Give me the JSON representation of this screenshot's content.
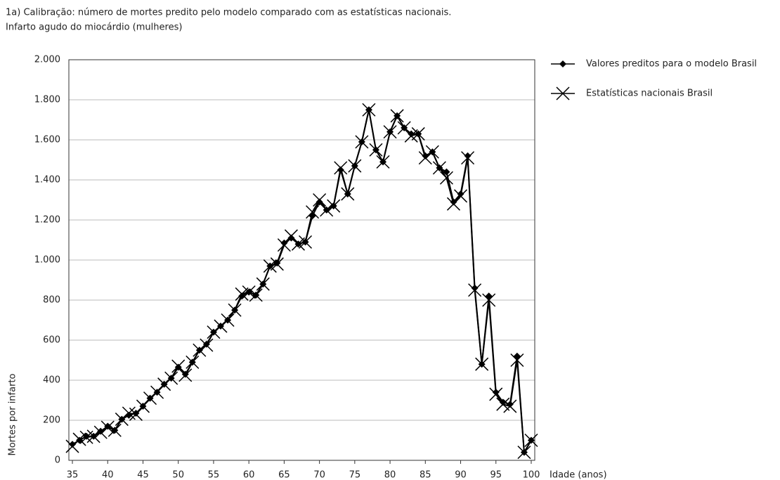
{
  "chart_data": {
    "type": "line",
    "title": "1a) Calibração: número de mortes predito pelo modelo comparado com as estatísticas nacionais.",
    "subtitle": "Infarto agudo do miocárdio (mulheres)",
    "y_label": "Mortes por infarto",
    "x_label": "Idade (anos)",
    "x": [
      35,
      36,
      37,
      38,
      39,
      40,
      41,
      42,
      43,
      44,
      45,
      46,
      47,
      48,
      49,
      50,
      51,
      52,
      53,
      54,
      55,
      56,
      57,
      58,
      59,
      60,
      61,
      62,
      63,
      64,
      65,
      66,
      67,
      68,
      69,
      70,
      71,
      72,
      73,
      74,
      75,
      76,
      77,
      78,
      79,
      80,
      81,
      82,
      83,
      84,
      85,
      86,
      87,
      88,
      89,
      90,
      91,
      92,
      93,
      94,
      95,
      96,
      97,
      98,
      99,
      100
    ],
    "series": [
      {
        "name": "Valores preditos para o modelo Brasil",
        "color": "#000000",
        "marker": "diamond",
        "values": [
          80,
          100,
          120,
          120,
          145,
          170,
          150,
          205,
          225,
          235,
          270,
          310,
          340,
          380,
          410,
          465,
          430,
          490,
          550,
          580,
          640,
          670,
          700,
          750,
          820,
          840,
          825,
          880,
          970,
          985,
          1085,
          1110,
          1080,
          1090,
          1220,
          1290,
          1250,
          1270,
          1450,
          1330,
          1470,
          1590,
          1750,
          1550,
          1490,
          1640,
          1720,
          1660,
          1630,
          1630,
          1520,
          1540,
          1460,
          1440,
          1290,
          1330,
          1520,
          860,
          480,
          820,
          340,
          290,
          280,
          520,
          40,
          100
        ]
      },
      {
        "name": "Estatísticas nacionais Brasil",
        "color": "#000000",
        "marker": "x",
        "values": [
          70,
          105,
          115,
          120,
          140,
          165,
          150,
          205,
          235,
          230,
          270,
          310,
          340,
          380,
          410,
          470,
          425,
          490,
          550,
          575,
          640,
          670,
          700,
          750,
          830,
          840,
          825,
          880,
          970,
          980,
          1075,
          1120,
          1080,
          1090,
          1240,
          1300,
          1250,
          1270,
          1460,
          1330,
          1470,
          1590,
          1750,
          1550,
          1490,
          1640,
          1720,
          1660,
          1620,
          1630,
          1510,
          1540,
          1460,
          1410,
          1280,
          1320,
          1510,
          850,
          480,
          800,
          330,
          280,
          270,
          500,
          40,
          100
        ]
      }
    ],
    "xlim": [
      34.5,
      100.5
    ],
    "xticks": [
      35,
      40,
      45,
      50,
      55,
      60,
      65,
      70,
      75,
      80,
      85,
      90,
      95,
      100
    ],
    "ylim": [
      0,
      2000
    ],
    "yticks": [
      0,
      200,
      400,
      600,
      800,
      {
        "value": 1000,
        "label": "1.000"
      },
      {
        "value": 1200,
        "label": "1.200"
      },
      {
        "value": 1400,
        "label": "1.400"
      },
      {
        "value": 1600,
        "label": "1.600"
      },
      {
        "value": 1800,
        "label": "1.800"
      },
      {
        "value": 2000,
        "label": "2.000"
      }
    ],
    "grid": true
  }
}
